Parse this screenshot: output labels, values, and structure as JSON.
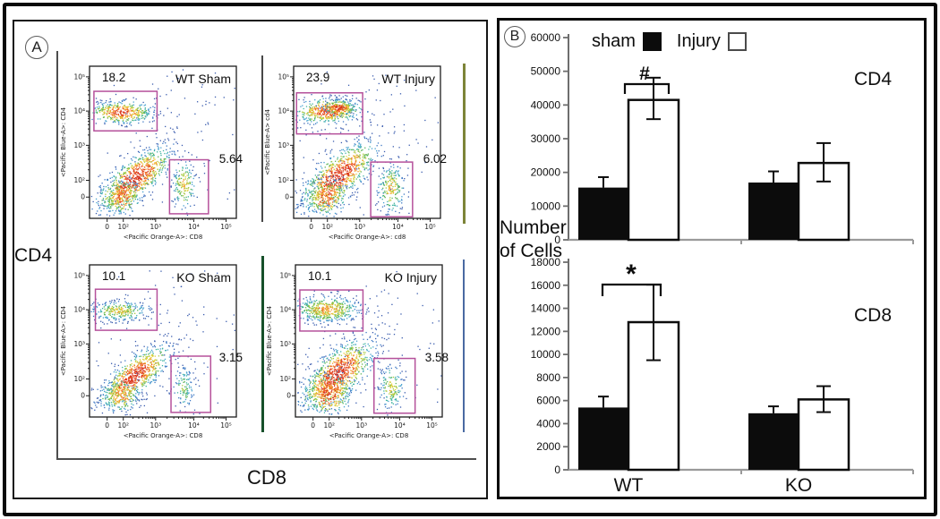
{
  "figure": {
    "panel_a": {
      "label": "A"
    },
    "panel_b": {
      "label": "B"
    },
    "big_axes": {
      "y": "CD4",
      "x": "CD8"
    },
    "legend": {
      "sham_label": "sham",
      "injury_label": "Injury",
      "sham_color": "#0c0c0c",
      "injury_color": "#ffffff"
    },
    "shared_ylabel": [
      "Number",
      "of Cells"
    ]
  },
  "chart_data": [
    {
      "type": "scatter-density",
      "id": "flow-wt-sham",
      "title": "WT Sham",
      "xlabel": "<Pacific Orange-A>: CD8",
      "ylabel": "<Pacific Blue-A>: CD4",
      "xticks": [
        "0",
        "10²",
        "10³",
        "10⁴",
        "10⁵"
      ],
      "yticks": [
        "0",
        "10²",
        "10³",
        "10⁴",
        "10⁵"
      ],
      "gate_color": "#b5519b",
      "seed": 11,
      "gates": [
        {
          "region": "CD4+",
          "pct": "18.2",
          "x": 0.03,
          "y": 0.165,
          "w": 0.43,
          "h": 0.26
        },
        {
          "region": "CD8+",
          "pct": "5.64",
          "x": 0.545,
          "y": 0.615,
          "w": 0.265,
          "h": 0.355
        }
      ],
      "clusters": [
        {
          "cx": 0.5,
          "cy": 0.5,
          "sx": 0.32,
          "sy": 0.3,
          "rot": 0,
          "n": 130,
          "hot": 0.05
        },
        {
          "cx": 0.21,
          "cy": 0.3,
          "sx": 0.115,
          "sy": 0.038,
          "rot": 0,
          "n": 430,
          "hot": 0.8
        },
        {
          "cx": 0.3,
          "cy": 0.74,
          "sx": 0.155,
          "sy": 0.06,
          "rot": -38,
          "n": 800,
          "hot": 1.0
        },
        {
          "cx": 0.22,
          "cy": 0.86,
          "sx": 0.07,
          "sy": 0.06,
          "rot": -20,
          "n": 250,
          "hot": 0.75
        },
        {
          "cx": 0.64,
          "cy": 0.78,
          "sx": 0.042,
          "sy": 0.085,
          "rot": 0,
          "n": 170,
          "hot": 0.55
        }
      ]
    },
    {
      "type": "scatter-density",
      "id": "flow-wt-injury",
      "title": "WT Injury",
      "xlabel": "<Pacific Orange-A>: cd8",
      "ylabel": "<Pacific Blue-A> cd4",
      "xticks": [
        "0",
        "10²",
        "10³",
        "10⁴",
        "10⁵"
      ],
      "yticks": [
        "0",
        "10²",
        "10³",
        "10⁴",
        "10⁵"
      ],
      "gate_color": "#b5519b",
      "seed": 22,
      "gates": [
        {
          "region": "CD4+",
          "pct": "23.9",
          "x": 0.02,
          "y": 0.175,
          "w": 0.45,
          "h": 0.27
        },
        {
          "region": "CD8+",
          "pct": "6.02",
          "x": 0.525,
          "y": 0.63,
          "w": 0.285,
          "h": 0.36
        }
      ],
      "clusters": [
        {
          "cx": 0.5,
          "cy": 0.5,
          "sx": 0.32,
          "sy": 0.3,
          "rot": 0,
          "n": 150,
          "hot": 0.05
        },
        {
          "cx": 0.23,
          "cy": 0.29,
          "sx": 0.125,
          "sy": 0.042,
          "rot": -3,
          "n": 480,
          "hot": 0.85
        },
        {
          "cx": 0.31,
          "cy": 0.27,
          "sx": 0.05,
          "sy": 0.025,
          "rot": 0,
          "n": 180,
          "hot": 1.0
        },
        {
          "cx": 0.3,
          "cy": 0.72,
          "sx": 0.16,
          "sy": 0.065,
          "rot": -40,
          "n": 850,
          "hot": 1.0
        },
        {
          "cx": 0.22,
          "cy": 0.86,
          "sx": 0.075,
          "sy": 0.06,
          "rot": -15,
          "n": 280,
          "hot": 0.8
        },
        {
          "cx": 0.66,
          "cy": 0.8,
          "sx": 0.05,
          "sy": 0.09,
          "rot": 0,
          "n": 210,
          "hot": 0.5
        }
      ]
    },
    {
      "type": "scatter-density",
      "id": "flow-ko-sham",
      "title": "KO Sham",
      "xlabel": "<Pacific Orange-A>: CD8",
      "ylabel": "<Pacific Blue-A>: CD4",
      "xticks": [
        "0",
        "10²",
        "10³",
        "10⁴",
        "10⁵"
      ],
      "yticks": [
        "0",
        "10²",
        "10³",
        "10⁴",
        "10⁵"
      ],
      "gate_color": "#b5519b",
      "seed": 33,
      "gates": [
        {
          "region": "CD4+",
          "pct": "10.1",
          "x": 0.04,
          "y": 0.16,
          "w": 0.42,
          "h": 0.27
        },
        {
          "region": "CD8+",
          "pct": "3.15",
          "x": 0.555,
          "y": 0.6,
          "w": 0.27,
          "h": 0.37
        }
      ],
      "clusters": [
        {
          "cx": 0.5,
          "cy": 0.5,
          "sx": 0.32,
          "sy": 0.3,
          "rot": 0,
          "n": 130,
          "hot": 0.05
        },
        {
          "cx": 0.2,
          "cy": 0.3,
          "sx": 0.11,
          "sy": 0.035,
          "rot": 0,
          "n": 300,
          "hot": 0.5
        },
        {
          "cx": 0.3,
          "cy": 0.73,
          "sx": 0.15,
          "sy": 0.055,
          "rot": -38,
          "n": 750,
          "hot": 0.95
        },
        {
          "cx": 0.21,
          "cy": 0.86,
          "sx": 0.065,
          "sy": 0.055,
          "rot": -20,
          "n": 220,
          "hot": 0.7
        },
        {
          "cx": 0.64,
          "cy": 0.8,
          "sx": 0.04,
          "sy": 0.08,
          "rot": 0,
          "n": 120,
          "hot": 0.35
        }
      ]
    },
    {
      "type": "scatter-density",
      "id": "flow-ko-injury",
      "title": "KO Injury",
      "xlabel": "<Pacific Orange-A>: CD8",
      "ylabel": "<Pacific Blue-A>: CD4",
      "xticks": [
        "0",
        "10²",
        "10³",
        "10⁴",
        "10⁵"
      ],
      "yticks": [
        "0",
        "10²",
        "10³",
        "10⁴",
        "10⁵"
      ],
      "gate_color": "#b5519b",
      "seed": 44,
      "gates": [
        {
          "region": "CD4+",
          "pct": "10.1",
          "x": 0.03,
          "y": 0.165,
          "w": 0.43,
          "h": 0.27
        },
        {
          "region": "CD8+",
          "pct": "3.58",
          "x": 0.535,
          "y": 0.615,
          "w": 0.28,
          "h": 0.36
        }
      ],
      "clusters": [
        {
          "cx": 0.5,
          "cy": 0.5,
          "sx": 0.32,
          "sy": 0.3,
          "rot": 0,
          "n": 140,
          "hot": 0.05
        },
        {
          "cx": 0.21,
          "cy": 0.29,
          "sx": 0.12,
          "sy": 0.045,
          "rot": 0,
          "n": 520,
          "hot": 0.6
        },
        {
          "cx": 0.28,
          "cy": 0.72,
          "sx": 0.16,
          "sy": 0.07,
          "rot": -42,
          "n": 950,
          "hot": 1.0
        },
        {
          "cx": 0.22,
          "cy": 0.85,
          "sx": 0.08,
          "sy": 0.07,
          "rot": -10,
          "n": 320,
          "hot": 0.9
        },
        {
          "cx": 0.65,
          "cy": 0.8,
          "sx": 0.045,
          "sy": 0.08,
          "rot": 0,
          "n": 160,
          "hot": 0.45
        }
      ]
    },
    {
      "type": "bar",
      "id": "cd4-counts",
      "annotation": "CD4",
      "categories": [
        "WT",
        "KO"
      ],
      "ylabel": "Number of Cells",
      "ylim": [
        0,
        60000
      ],
      "ytick_step": 10000,
      "series": [
        {
          "name": "sham",
          "color": "#0c0c0c",
          "values": [
            15500,
            17000
          ],
          "err_up": [
            3100,
            3300
          ],
          "err_down": [
            0,
            0
          ]
        },
        {
          "name": "Injury",
          "color": "#ffffff",
          "values": [
            41500,
            22800
          ],
          "err_up": [
            6600,
            5900
          ],
          "err_down": [
            5700,
            5500
          ]
        }
      ],
      "significance": {
        "symbol": "#",
        "between": [
          "WT sham",
          "WT Injury"
        ]
      }
    },
    {
      "type": "bar",
      "id": "cd8-counts",
      "annotation": "CD8",
      "categories": [
        "WT",
        "KO"
      ],
      "ylabel": "Number of Cells",
      "ylim": [
        0,
        18000
      ],
      "ytick_step": 2000,
      "series": [
        {
          "name": "sham",
          "color": "#0c0c0c",
          "values": [
            5400,
            4900
          ],
          "err_up": [
            950,
            600
          ],
          "err_down": [
            0,
            0
          ]
        },
        {
          "name": "Injury",
          "color": "#ffffff",
          "values": [
            12800,
            6100
          ],
          "err_up": [
            3250,
            1150
          ],
          "err_down": [
            3300,
            1100
          ]
        }
      ],
      "significance": {
        "symbol": "*",
        "between": [
          "WT sham",
          "WT Injury"
        ]
      }
    }
  ]
}
